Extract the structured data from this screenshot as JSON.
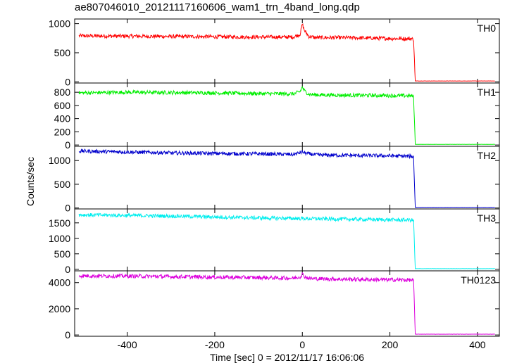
{
  "title": "ae807046010_20121117160606_wam1_trn_4band_long.qdp",
  "chart_data": {
    "type": "line",
    "xlabel": "Time [sec] 0 = 2012/11/17 16:06:06",
    "ylabel": "Counts/sec",
    "xlim": [
      -520,
      450
    ],
    "xticks": [
      -400,
      -200,
      0,
      200,
      400
    ],
    "shared_x": true,
    "grid": false,
    "panels": [
      {
        "name": "TH0",
        "color": "#ff0000",
        "ylim": [
          -20,
          1080
        ],
        "yticks": [
          0,
          500,
          1000
        ],
        "x": [
          -510,
          -400,
          -300,
          -200,
          -100,
          -20,
          -5,
          0,
          5,
          15,
          30,
          100,
          200,
          250,
          254,
          258,
          300,
          440
        ],
        "values": [
          790,
          785,
          780,
          775,
          770,
          770,
          820,
          990,
          880,
          780,
          760,
          760,
          745,
          740,
          730,
          15,
          15,
          15
        ]
      },
      {
        "name": "TH1",
        "color": "#00ee00",
        "ylim": [
          -20,
          940
        ],
        "yticks": [
          0,
          200,
          400,
          600,
          800
        ],
        "x": [
          -510,
          -400,
          -300,
          -200,
          -100,
          -20,
          -5,
          0,
          5,
          15,
          30,
          100,
          200,
          250,
          254,
          258,
          300,
          440
        ],
        "values": [
          790,
          800,
          795,
          790,
          780,
          775,
          810,
          880,
          820,
          770,
          760,
          755,
          750,
          745,
          730,
          10,
          10,
          10
        ]
      },
      {
        "name": "TH2",
        "color": "#0000cc",
        "ylim": [
          -20,
          1300
        ],
        "yticks": [
          0,
          500,
          1000
        ],
        "x": [
          -510,
          -400,
          -300,
          -200,
          -100,
          -20,
          0,
          10,
          30,
          100,
          200,
          250,
          254,
          258,
          300,
          440
        ],
        "values": [
          1200,
          1180,
          1160,
          1150,
          1140,
          1130,
          1180,
          1150,
          1120,
          1110,
          1100,
          1090,
          1070,
          15,
          15,
          15
        ]
      },
      {
        "name": "TH3",
        "color": "#00eeee",
        "ylim": [
          -50,
          1950
        ],
        "yticks": [
          0,
          500,
          1000,
          1500
        ],
        "x": [
          -510,
          -400,
          -300,
          -200,
          -100,
          0,
          100,
          200,
          250,
          254,
          258,
          300,
          440
        ],
        "values": [
          1760,
          1740,
          1720,
          1690,
          1660,
          1640,
          1620,
          1600,
          1590,
          1570,
          20,
          20,
          20
        ]
      },
      {
        "name": "TH0123",
        "color": "#dd00dd",
        "ylim": [
          -100,
          4900
        ],
        "yticks": [
          0,
          2000,
          4000
        ],
        "x": [
          -510,
          -400,
          -300,
          -200,
          -100,
          -20,
          -5,
          0,
          5,
          15,
          30,
          100,
          200,
          250,
          254,
          258,
          300,
          440
        ],
        "values": [
          4520,
          4500,
          4460,
          4420,
          4380,
          4340,
          4450,
          4650,
          4470,
          4320,
          4300,
          4260,
          4220,
          4200,
          4150,
          60,
          60,
          60
        ]
      }
    ]
  }
}
